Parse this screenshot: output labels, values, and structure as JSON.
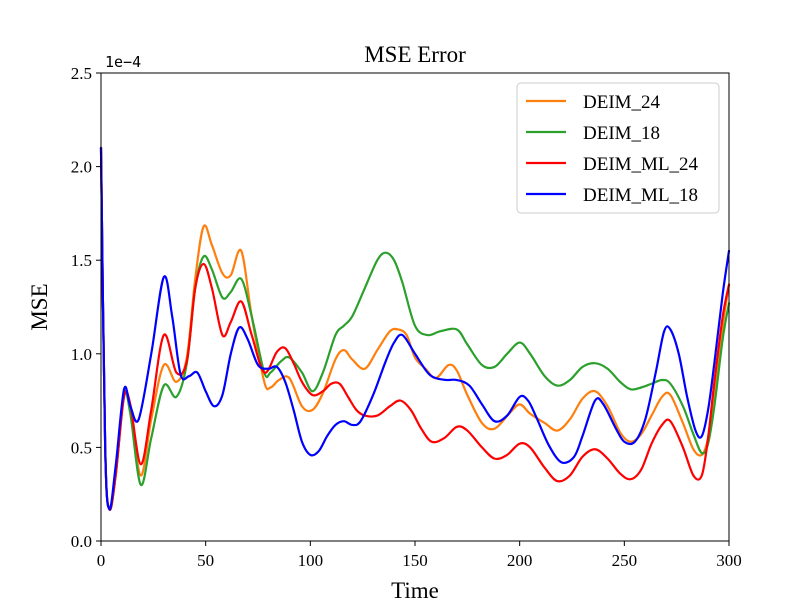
{
  "chart_data": {
    "type": "line",
    "title": "MSE Error",
    "xlabel": "Time",
    "ylabel": "MSE",
    "y_scale_label": "1e−4",
    "xlim": [
      0,
      300
    ],
    "ylim": [
      0,
      2.5
    ],
    "x_ticks": [
      0,
      50,
      100,
      150,
      200,
      250,
      300
    ],
    "x_tick_labels": [
      "0",
      "50",
      "100",
      "150",
      "200",
      "250",
      "300"
    ],
    "y_ticks": [
      0,
      0.5,
      1.0,
      1.5,
      2.0,
      2.5
    ],
    "y_tick_labels": [
      "0.0",
      "0.5",
      "1.0",
      "1.5",
      "2.0",
      "2.5"
    ],
    "grid": false,
    "legend_position": "top-right",
    "series": [
      {
        "name": "DEIM_24",
        "color": "#ff7f0e",
        "x": [
          0,
          2,
          4,
          7,
          11,
          14,
          19,
          24,
          30,
          36,
          41,
          45,
          49,
          53,
          58,
          62,
          67,
          72,
          78,
          81,
          85,
          90,
          96,
          101,
          106,
          112,
          116,
          120,
          126,
          132,
          138,
          142,
          146,
          150,
          155,
          160,
          166,
          170,
          175,
          182,
          188,
          195,
          200,
          205,
          212,
          218,
          224,
          230,
          236,
          242,
          248,
          253,
          258,
          263,
          268,
          272,
          278,
          283,
          287,
          290,
          293,
          297,
          300
        ],
        "y": [
          2.1,
          0.5,
          0.17,
          0.35,
          0.78,
          0.7,
          0.35,
          0.65,
          0.94,
          0.85,
          0.98,
          1.4,
          1.68,
          1.58,
          1.43,
          1.42,
          1.55,
          1.2,
          0.85,
          0.82,
          0.86,
          0.87,
          0.72,
          0.7,
          0.79,
          0.97,
          1.02,
          0.97,
          0.92,
          1.02,
          1.12,
          1.13,
          1.1,
          0.98,
          0.92,
          0.87,
          0.94,
          0.91,
          0.78,
          0.63,
          0.6,
          0.68,
          0.73,
          0.68,
          0.63,
          0.59,
          0.65,
          0.76,
          0.8,
          0.72,
          0.58,
          0.53,
          0.57,
          0.67,
          0.77,
          0.78,
          0.63,
          0.49,
          0.46,
          0.55,
          0.78,
          1.15,
          1.37
        ]
      },
      {
        "name": "DEIM_18",
        "color": "#2ca02c",
        "x": [
          0,
          2,
          4,
          7,
          11,
          14,
          19,
          24,
          30,
          36,
          41,
          45,
          49,
          53,
          58,
          62,
          67,
          72,
          78,
          81,
          86,
          90,
          96,
          101,
          106,
          112,
          116,
          120,
          126,
          132,
          136,
          140,
          144,
          150,
          156,
          162,
          170,
          175,
          182,
          188,
          194,
          200,
          205,
          212,
          218,
          224,
          230,
          236,
          242,
          248,
          253,
          258,
          263,
          268,
          272,
          278,
          283,
          287,
          290,
          293,
          297,
          300
        ],
        "y": [
          2.1,
          0.5,
          0.17,
          0.35,
          0.78,
          0.68,
          0.3,
          0.55,
          0.83,
          0.77,
          0.95,
          1.35,
          1.52,
          1.45,
          1.3,
          1.33,
          1.4,
          1.2,
          0.9,
          0.9,
          0.96,
          0.98,
          0.9,
          0.8,
          0.9,
          1.1,
          1.15,
          1.2,
          1.35,
          1.5,
          1.54,
          1.5,
          1.38,
          1.15,
          1.1,
          1.12,
          1.13,
          1.05,
          0.94,
          0.93,
          1.0,
          1.06,
          1.0,
          0.88,
          0.83,
          0.86,
          0.93,
          0.95,
          0.92,
          0.85,
          0.81,
          0.82,
          0.84,
          0.86,
          0.84,
          0.72,
          0.57,
          0.47,
          0.52,
          0.72,
          1.08,
          1.27
        ]
      },
      {
        "name": "DEIM_ML_24",
        "color": "#ff0000",
        "x": [
          0,
          2,
          4,
          7,
          11,
          14,
          19,
          24,
          30,
          36,
          41,
          45,
          49,
          53,
          58,
          62,
          67,
          72,
          78,
          84,
          88,
          92,
          96,
          101,
          106,
          110,
          114,
          118,
          122,
          126,
          132,
          138,
          143,
          148,
          153,
          158,
          164,
          170,
          175,
          182,
          188,
          194,
          200,
          205,
          212,
          218,
          224,
          230,
          236,
          242,
          248,
          253,
          258,
          263,
          268,
          272,
          278,
          283,
          287,
          290,
          293,
          297,
          300
        ],
        "y": [
          2.1,
          0.5,
          0.17,
          0.35,
          0.77,
          0.73,
          0.41,
          0.7,
          1.1,
          0.9,
          0.96,
          1.35,
          1.48,
          1.35,
          1.1,
          1.17,
          1.28,
          1.1,
          0.9,
          1.01,
          1.03,
          0.95,
          0.85,
          0.78,
          0.8,
          0.84,
          0.84,
          0.77,
          0.7,
          0.67,
          0.67,
          0.72,
          0.75,
          0.7,
          0.6,
          0.53,
          0.55,
          0.61,
          0.59,
          0.5,
          0.44,
          0.46,
          0.52,
          0.5,
          0.39,
          0.32,
          0.35,
          0.45,
          0.49,
          0.44,
          0.36,
          0.33,
          0.38,
          0.52,
          0.62,
          0.64,
          0.5,
          0.35,
          0.35,
          0.55,
          0.85,
          1.2,
          1.37
        ]
      },
      {
        "name": "DEIM_ML_18",
        "color": "#0000ff",
        "x": [
          0,
          2,
          4,
          7,
          11,
          14,
          18,
          24,
          30,
          34,
          38,
          42,
          46,
          50,
          54,
          58,
          62,
          66,
          70,
          75,
          80,
          84,
          88,
          92,
          96,
          100,
          104,
          108,
          112,
          116,
          120,
          124,
          130,
          136,
          140,
          144,
          150,
          156,
          160,
          165,
          170,
          176,
          182,
          188,
          194,
          200,
          204,
          208,
          214,
          220,
          226,
          230,
          236,
          240,
          246,
          250,
          255,
          260,
          265,
          269,
          272,
          276,
          280,
          284,
          287,
          290,
          293,
          297,
          300
        ],
        "y": [
          2.1,
          0.5,
          0.17,
          0.4,
          0.81,
          0.72,
          0.65,
          1.0,
          1.41,
          1.2,
          0.89,
          0.88,
          0.9,
          0.8,
          0.72,
          0.78,
          1.0,
          1.14,
          1.08,
          0.94,
          0.92,
          0.93,
          0.85,
          0.7,
          0.53,
          0.46,
          0.48,
          0.56,
          0.62,
          0.64,
          0.62,
          0.64,
          0.78,
          0.96,
          1.06,
          1.1,
          1.0,
          0.9,
          0.87,
          0.86,
          0.86,
          0.83,
          0.73,
          0.64,
          0.67,
          0.77,
          0.75,
          0.66,
          0.51,
          0.42,
          0.45,
          0.56,
          0.75,
          0.73,
          0.6,
          0.53,
          0.53,
          0.65,
          0.9,
          1.12,
          1.13,
          1.0,
          0.77,
          0.59,
          0.56,
          0.7,
          0.95,
          1.32,
          1.55
        ]
      }
    ]
  }
}
